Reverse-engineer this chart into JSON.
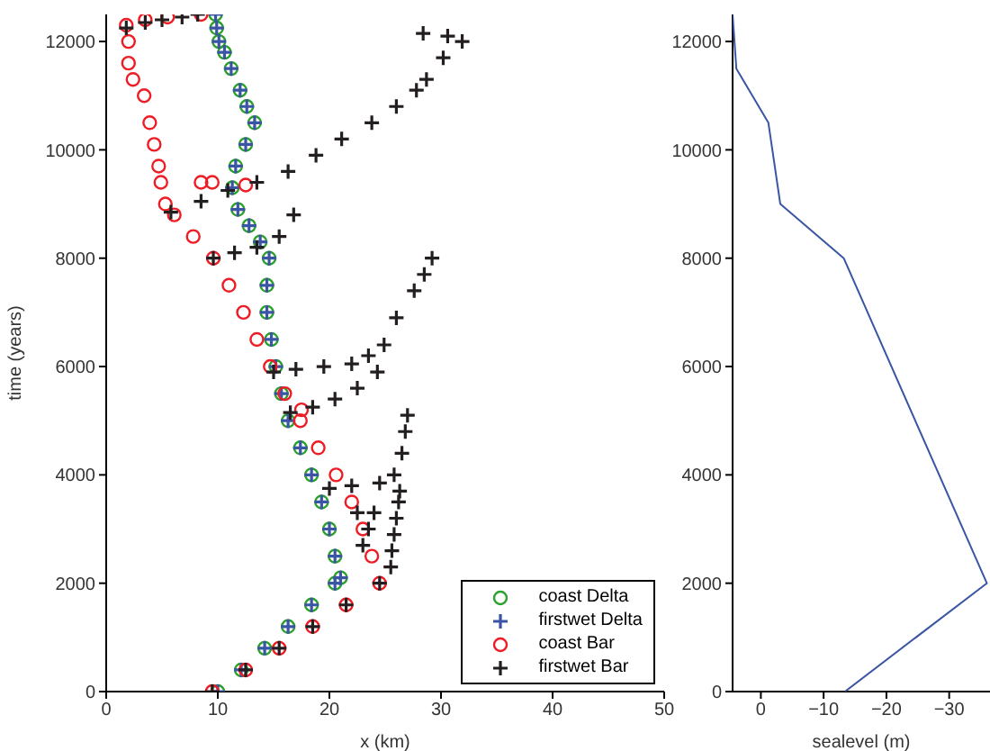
{
  "chart_data": [
    {
      "type": "scatter",
      "xlabel": "x (km)",
      "ylabel": "time (years)",
      "xlim": [
        0,
        50
      ],
      "xticks": [
        0,
        10,
        20,
        30,
        40,
        50
      ],
      "ylim": [
        0,
        12500
      ],
      "yticks": [
        0,
        2000,
        4000,
        6000,
        8000,
        10000,
        12000
      ],
      "legend": "bottom right",
      "series": [
        {
          "name": "coast Delta",
          "color": "#2ca02c",
          "marker": "circle",
          "x": [
            10,
            12.1,
            14.2,
            16.3,
            18.4,
            20.5,
            21,
            20.5,
            20,
            19.3,
            18.4,
            17.4,
            16.3,
            15.7,
            15.2,
            14.8,
            14.4,
            14.4,
            14.6,
            13.8,
            12.8,
            11.8,
            11.3,
            11.6,
            12.5,
            13.3,
            12.6,
            12,
            11.2,
            10.6,
            10.1,
            9.9,
            9.8
          ],
          "values": [
            0,
            400,
            800,
            1200,
            1600,
            2000,
            2100,
            2500,
            3000,
            3500,
            4000,
            4500,
            5000,
            5500,
            6000,
            6500,
            7000,
            7500,
            8000,
            8300,
            8600,
            8900,
            9300,
            9700,
            10100,
            10500,
            10800,
            11100,
            11500,
            11800,
            12000,
            12250,
            12500
          ]
        },
        {
          "name": "firstwet Delta",
          "color": "#3a55a4",
          "marker": "cross",
          "x": [
            10,
            12.1,
            14.2,
            16.3,
            18.4,
            20.5,
            21,
            20.5,
            20,
            19.3,
            18.4,
            17.4,
            16.3,
            15.7,
            15.2,
            14.8,
            14.4,
            14.4,
            14.6,
            13.8,
            12.8,
            11.8,
            11.3,
            11.6,
            12.5,
            13.3,
            12.6,
            12,
            11.2,
            10.6,
            10.1,
            9.9,
            9.8
          ],
          "values": [
            0,
            400,
            800,
            1200,
            1600,
            2000,
            2100,
            2500,
            3000,
            3500,
            4000,
            4500,
            5000,
            5500,
            6000,
            6500,
            7000,
            7500,
            8000,
            8300,
            8600,
            8900,
            9300,
            9700,
            10100,
            10500,
            10800,
            11100,
            11500,
            11800,
            12000,
            12250,
            12500
          ]
        },
        {
          "name": "coast Bar",
          "color": "#ee1c25",
          "marker": "circle",
          "x": [
            9.5,
            12.5,
            15.5,
            18.5,
            21.5,
            24.5,
            23.8,
            23,
            22,
            20.6,
            19,
            17.4,
            17.5,
            16,
            14.7,
            13.5,
            12.3,
            11,
            9.6,
            7.8,
            6.1,
            5.3,
            4.9,
            4.7,
            4.3,
            3.9,
            3.4,
            2.4,
            2,
            2,
            1.8,
            3.5,
            5.5,
            8.5,
            8.5,
            9.5,
            12.5
          ],
          "values": [
            0,
            400,
            800,
            1200,
            1600,
            2000,
            2500,
            3000,
            3500,
            4000,
            4500,
            5000,
            5200,
            5500,
            6000,
            6500,
            7000,
            7500,
            8000,
            8400,
            8800,
            9000,
            9400,
            9700,
            10100,
            10500,
            11000,
            11300,
            11600,
            12000,
            12300,
            12400,
            12450,
            12500,
            9400,
            9400,
            9350
          ]
        },
        {
          "name": "firstwet Bar",
          "color": "#231f20",
          "marker": "cross",
          "x": [
            9.5,
            12.5,
            15.5,
            18.5,
            21.5,
            24.5,
            25.5,
            25.6,
            25.8,
            26,
            26.2,
            26.3,
            23,
            23.5,
            22.5,
            24,
            20,
            22,
            24.5,
            25.8,
            26.5,
            26.8,
            27,
            16.5,
            18.5,
            20.5,
            22.5,
            24.3,
            15,
            17,
            19.5,
            22,
            23.5,
            24.9,
            26,
            27.6,
            28.5,
            29.2,
            9.6,
            11.5,
            13.5,
            15.5,
            16.8,
            5.8,
            8.5,
            10.9,
            13.5,
            16.3,
            18.8,
            21.1,
            23.8,
            26,
            27.8,
            28.7,
            30.2,
            31.9,
            30.6,
            28.4,
            1.8,
            3.5,
            5,
            6.8,
            8.2
          ],
          "values": [
            0,
            400,
            800,
            1200,
            1600,
            2000,
            2300,
            2600,
            2900,
            3200,
            3500,
            3700,
            2700,
            3000,
            3300,
            3300,
            3750,
            3800,
            3850,
            4000,
            4400,
            4800,
            5100,
            5150,
            5250,
            5400,
            5600,
            5900,
            5900,
            5950,
            6000,
            6050,
            6200,
            6400,
            6900,
            7400,
            7700,
            8000,
            8000,
            8100,
            8200,
            8400,
            8800,
            8850,
            9050,
            9250,
            9400,
            9600,
            9900,
            10200,
            10500,
            10800,
            11100,
            11300,
            11700,
            12000,
            12100,
            12150,
            12250,
            12350,
            12400,
            12450,
            12500
          ]
        }
      ]
    },
    {
      "type": "line",
      "xlabel": "sealevel (m)",
      "xlim": [
        4.5,
        -36.5
      ],
      "xticks": [
        0,
        {
          "value": -10,
          "label": "−10"
        },
        {
          "value": -20,
          "label": "−20"
        },
        {
          "value": -30,
          "label": "−30"
        }
      ],
      "ylim": [
        0,
        12500
      ],
      "yticks": [
        0,
        2000,
        4000,
        6000,
        8000,
        10000,
        12000
      ],
      "marker": "none",
      "series": [
        {
          "color": "#3a55a4",
          "x": [
            -13.4,
            -36,
            -13.2,
            -3.1,
            -1.2,
            3.9,
            4.5
          ],
          "values": [
            0,
            2000,
            8000,
            9000,
            10500,
            11500,
            12500
          ]
        }
      ]
    }
  ]
}
